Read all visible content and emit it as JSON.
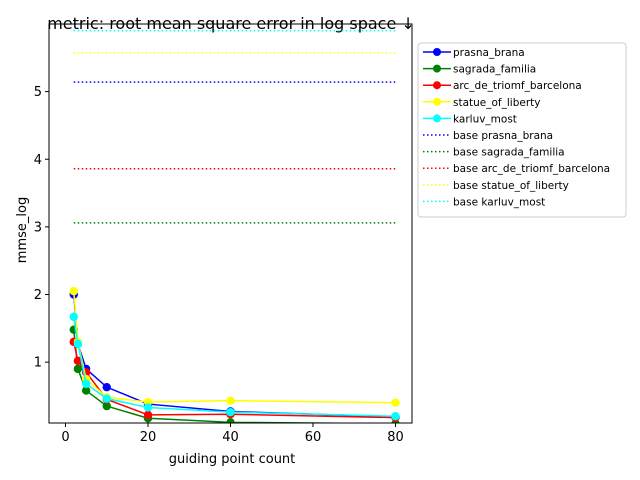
{
  "chart_data": {
    "type": "line",
    "title": "metric: root mean square error in log space ↓",
    "xlabel": "guiding point count",
    "ylabel": "mmse_log",
    "xlim": [
      -4,
      84
    ],
    "ylim": [
      0.1,
      6.0
    ],
    "xticks": [
      0,
      20,
      40,
      60,
      80
    ],
    "yticks": [
      1,
      2,
      3,
      4,
      5
    ],
    "grid": false,
    "legend_position": "outside-right",
    "x": [
      2,
      3,
      5,
      10,
      20,
      40,
      80
    ],
    "series": [
      {
        "name": "prasna_brana",
        "color": "#0000ff",
        "style": "solid",
        "marker": "circle",
        "values": [
          2.0,
          1.27,
          0.9,
          0.63,
          0.38,
          0.27,
          0.19
        ]
      },
      {
        "name": "sagrada_familia",
        "color": "#008000",
        "style": "solid",
        "marker": "circle",
        "values": [
          1.48,
          0.9,
          0.58,
          0.35,
          0.17,
          0.11,
          0.09
        ]
      },
      {
        "name": "arc_de_triomf_barcelona",
        "color": "#ff0000",
        "style": "solid",
        "marker": "circle",
        "values": [
          1.3,
          1.02,
          0.85,
          0.45,
          0.22,
          0.23,
          0.18
        ]
      },
      {
        "name": "statue_of_liberty",
        "color": "#ffff00",
        "style": "solid",
        "marker": "circle",
        "values": [
          2.05,
          1.3,
          0.75,
          0.48,
          0.41,
          0.43,
          0.4
        ]
      },
      {
        "name": "karluv_most",
        "color": "#00ffff",
        "style": "solid",
        "marker": "circle",
        "values": [
          1.67,
          1.27,
          0.68,
          0.46,
          0.33,
          0.26,
          0.2
        ]
      },
      {
        "name": "base prasna_brana",
        "color": "#0000ff",
        "style": "dotted",
        "marker": "none",
        "constant": 5.14
      },
      {
        "name": "base sagrada_familia",
        "color": "#008000",
        "style": "dotted",
        "marker": "none",
        "constant": 3.06
      },
      {
        "name": "base arc_de_triomf_barcelona",
        "color": "#ff0000",
        "style": "dotted",
        "marker": "none",
        "constant": 3.86
      },
      {
        "name": "base statue_of_liberty",
        "color": "#ffff00",
        "style": "dotted",
        "marker": "none",
        "constant": 5.57
      },
      {
        "name": "base karluv_most",
        "color": "#00ffff",
        "style": "dotted",
        "marker": "none",
        "constant": 5.9
      }
    ]
  }
}
